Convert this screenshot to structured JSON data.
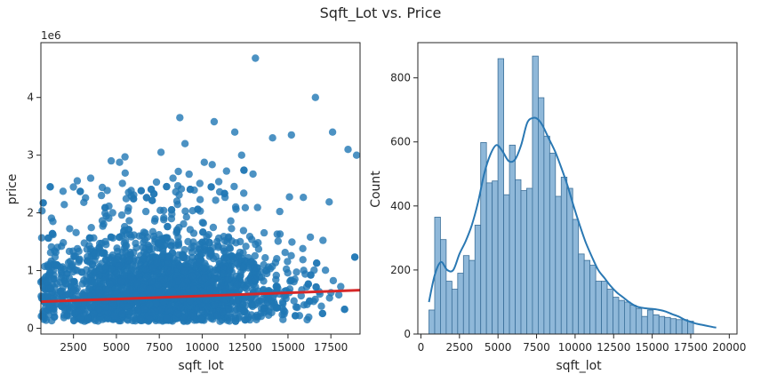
{
  "title": "Sqft_Lot vs. Price",
  "colors": {
    "scatter": "#1f77b4",
    "regression": "#d62728",
    "hist_fill": "#8fb8d9",
    "hist_edge": "#3a6f99",
    "kde": "#2a78b3"
  },
  "chart_data": [
    {
      "type": "scatter",
      "xlabel": "sqft_lot",
      "ylabel": "price",
      "y_offset_label": "1e6",
      "xlim": [
        600,
        19200
      ],
      "ylim": [
        -0.1,
        4.95
      ],
      "y_units": "1e6",
      "xticks": [
        2500,
        5000,
        7500,
        10000,
        12500,
        15000,
        17500
      ],
      "xtick_labels": [
        "2500",
        "5000",
        "7500",
        "10000",
        "12500",
        "15000",
        "17500"
      ],
      "yticks": [
        0,
        1,
        2,
        3,
        4
      ],
      "ytick_labels": [
        "0",
        "1",
        "2",
        "3",
        "4"
      ],
      "regression_line": {
        "x": [
          600,
          19200
        ],
        "y": [
          0.46,
          0.66
        ]
      },
      "notable_points": [
        {
          "x": 13100,
          "y": 4.68
        },
        {
          "x": 16600,
          "y": 4.0
        },
        {
          "x": 8700,
          "y": 3.65
        },
        {
          "x": 10700,
          "y": 3.58
        },
        {
          "x": 11900,
          "y": 3.4
        },
        {
          "x": 14100,
          "y": 3.3
        },
        {
          "x": 15200,
          "y": 3.35
        },
        {
          "x": 17600,
          "y": 3.4
        },
        {
          "x": 3500,
          "y": 2.6
        },
        {
          "x": 4700,
          "y": 2.9
        },
        {
          "x": 5500,
          "y": 2.97
        },
        {
          "x": 7600,
          "y": 3.05
        },
        {
          "x": 1300,
          "y": 1.85
        },
        {
          "x": 3200,
          "y": 2.26
        },
        {
          "x": 9000,
          "y": 3.2
        },
        {
          "x": 12300,
          "y": 3.0
        },
        {
          "x": 19000,
          "y": 3.0
        },
        {
          "x": 18500,
          "y": 3.1
        }
      ],
      "grid": false
    },
    {
      "type": "bar",
      "subtype": "histogram",
      "xlabel": "sqft_lot",
      "ylabel": "Count",
      "xlim": [
        -200,
        20500
      ],
      "ylim": [
        0,
        910
      ],
      "xticks": [
        0,
        2500,
        5000,
        7500,
        10000,
        12500,
        15000,
        17500,
        20000
      ],
      "xtick_labels": [
        "0",
        "2500",
        "5000",
        "7500",
        "10000",
        "12500",
        "15000",
        "17500",
        "20000"
      ],
      "yticks": [
        0,
        200,
        400,
        600,
        800
      ],
      "ytick_labels": [
        "0",
        "200",
        "400",
        "600",
        "800"
      ],
      "bin_start": 520,
      "bin_width": 373,
      "counts": [
        75,
        365,
        295,
        165,
        140,
        190,
        245,
        230,
        340,
        598,
        472,
        478,
        860,
        435,
        590,
        482,
        448,
        455,
        868,
        738,
        618,
        565,
        430,
        490,
        455,
        358,
        250,
        230,
        215,
        165,
        165,
        140,
        115,
        105,
        100,
        90,
        80,
        55,
        75,
        60,
        55,
        52,
        48,
        45,
        45,
        40
      ],
      "kde": {
        "x": [
          520,
          900,
          1300,
          1700,
          2100,
          2500,
          2900,
          3300,
          3700,
          4100,
          4500,
          4900,
          5300,
          5700,
          6100,
          6500,
          6900,
          7300,
          7600,
          7900,
          8300,
          8700,
          9100,
          9500,
          9900,
          10300,
          10700,
          11100,
          11500,
          11900,
          12300,
          12700,
          13100,
          13500,
          13900,
          14300,
          14700,
          15100,
          15500,
          15900,
          16300,
          16700,
          17100,
          17500,
          17900,
          18300,
          18700,
          19150
        ],
        "y": [
          100,
          185,
          225,
          200,
          200,
          250,
          290,
          340,
          410,
          500,
          560,
          590,
          570,
          540,
          545,
          590,
          660,
          675,
          670,
          650,
          610,
          570,
          520,
          465,
          400,
          340,
          285,
          240,
          200,
          175,
          150,
          130,
          115,
          100,
          88,
          82,
          80,
          78,
          75,
          70,
          62,
          55,
          45,
          38,
          32,
          28,
          24,
          20
        ]
      },
      "grid": false
    }
  ]
}
